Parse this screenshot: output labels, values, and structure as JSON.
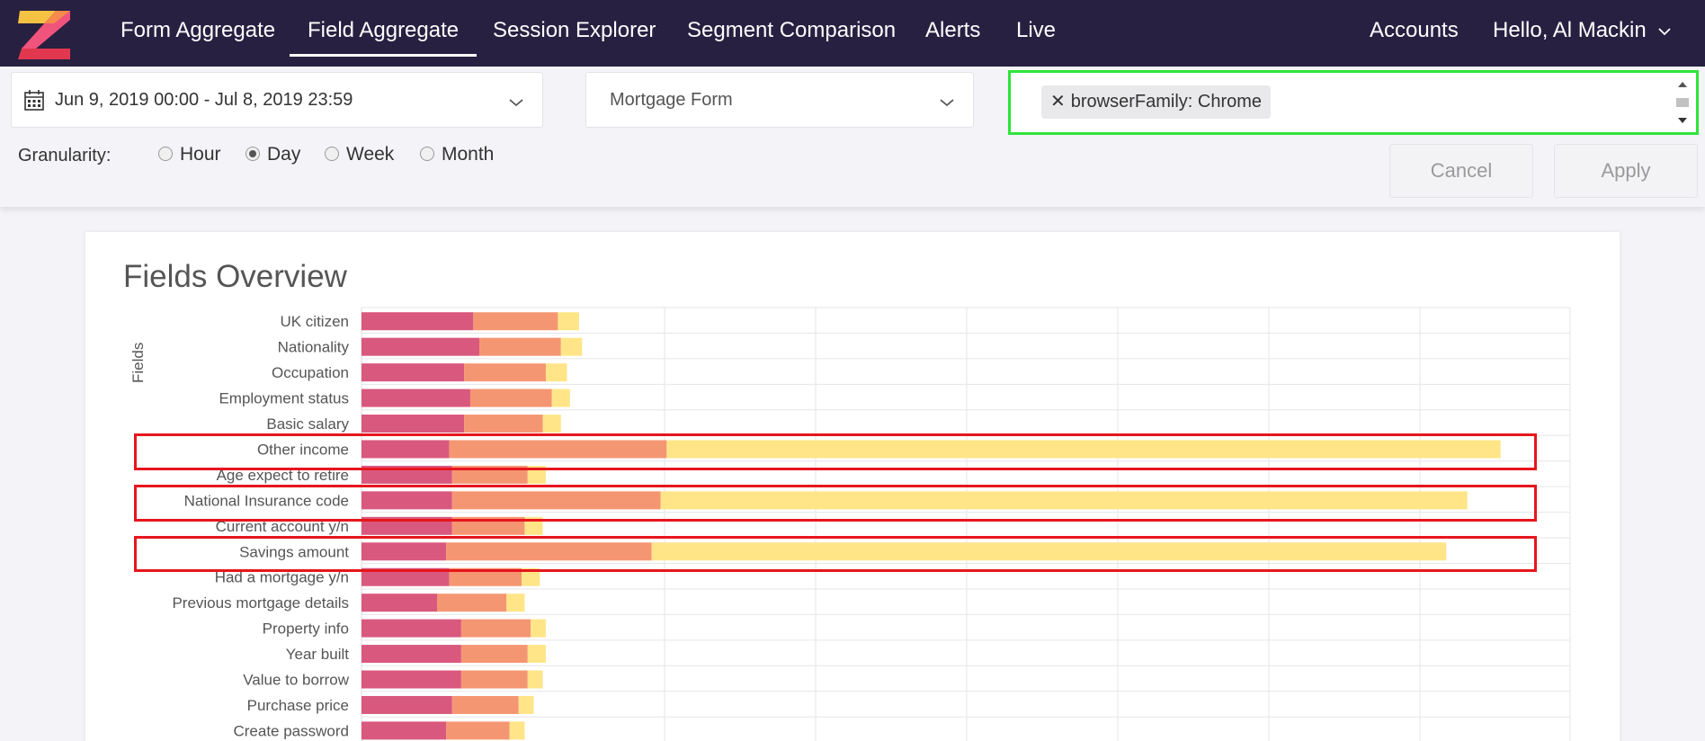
{
  "nav": {
    "items": [
      "Form Aggregate",
      "Field Aggregate",
      "Session Explorer",
      "Segment Comparison",
      "Alerts",
      "Live"
    ],
    "active": "Field Aggregate",
    "accounts": "Accounts",
    "user": "Hello, Al Mackin",
    "bg": "#282041"
  },
  "filters": {
    "date_range": "Jun 9, 2019 00:00 - Jul 8, 2019 23:59",
    "form": "Mortgage Form",
    "tag": "browserFamily: Chrome",
    "granularity_label": "Granularity:",
    "granularity_options": [
      "Hour",
      "Day",
      "Week",
      "Month"
    ],
    "granularity_selected": "Day",
    "cancel": "Cancel",
    "apply": "Apply"
  },
  "card": {
    "title": "Fields Overview",
    "y_axis_title": "Fields"
  },
  "chart_data": {
    "type": "bar",
    "orientation": "horizontal",
    "stacked": true,
    "grid": true,
    "xlim": [
      0,
      400
    ],
    "categories": [
      "UK citizen",
      "Nationality",
      "Occupation",
      "Employment status",
      "Basic salary",
      "Other income",
      "Age expect to retire",
      "National Insurance code",
      "Current account y/n",
      "Savings amount",
      "Had a mortgage y/n",
      "Previous mortgage details",
      "Property info",
      "Year built",
      "Value to borrow",
      "Purchase price",
      "Create password"
    ],
    "series": [
      {
        "color": "#d9587e",
        "values": [
          37,
          39,
          34,
          36,
          34,
          29,
          30,
          30,
          30,
          28,
          29,
          25,
          33,
          33,
          33,
          30,
          28
        ]
      },
      {
        "color": "#f59673",
        "values": [
          28,
          27,
          27,
          27,
          26,
          72,
          25,
          69,
          24,
          68,
          24,
          23,
          23,
          22,
          22,
          22,
          21
        ]
      },
      {
        "color": "#ffe588",
        "values": [
          7,
          7,
          7,
          6,
          6,
          276,
          6,
          267,
          6,
          263,
          6,
          6,
          5,
          6,
          5,
          5,
          5
        ]
      }
    ],
    "highlighted": [
      "Other income",
      "National Insurance code",
      "Savings amount"
    ],
    "highlight_color": "#e6161d"
  }
}
